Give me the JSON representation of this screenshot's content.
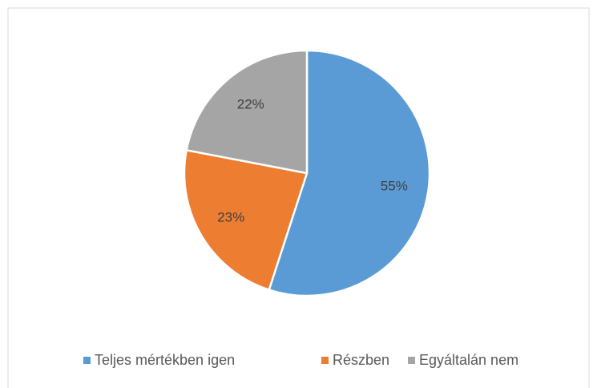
{
  "chart_data": {
    "type": "pie",
    "categories": [
      "Teljes mértékben igen",
      "Részben",
      "Egyáltalán nem"
    ],
    "values": [
      55,
      23,
      22
    ],
    "value_labels": [
      "55%",
      "23%",
      "22%"
    ],
    "colors": [
      "#5b9bd5",
      "#ed7d31",
      "#a5a5a5"
    ],
    "legend": "bottom"
  }
}
